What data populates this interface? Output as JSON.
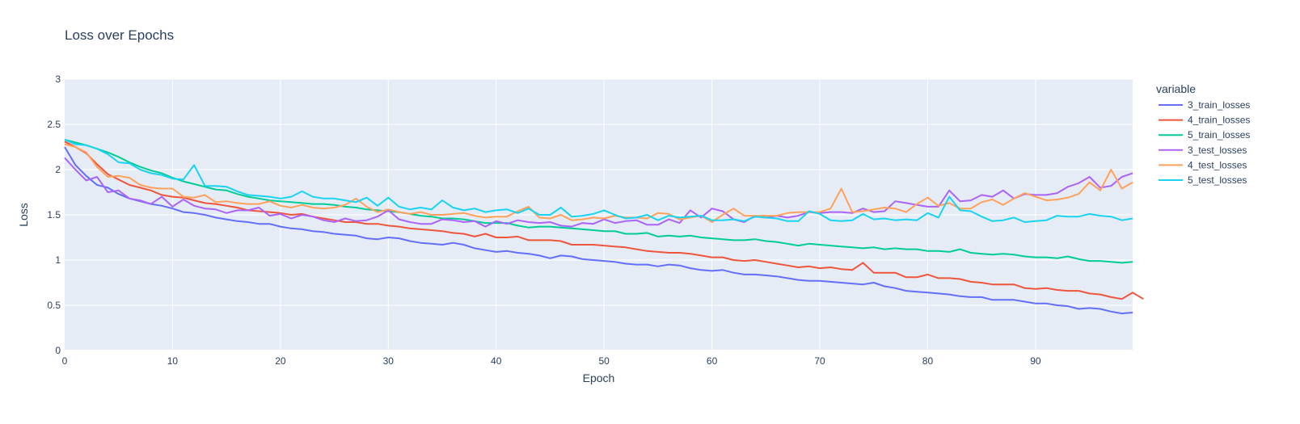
{
  "chart_data": {
    "type": "line",
    "title": "Loss over Epochs",
    "xlabel": "Epoch",
    "ylabel": "Loss",
    "xlim": [
      0,
      99
    ],
    "ylim": [
      0,
      3
    ],
    "xticks": [
      0,
      10,
      20,
      30,
      40,
      50,
      60,
      70,
      80,
      90
    ],
    "yticks": [
      0,
      0.5,
      1,
      1.5,
      2,
      2.5,
      3
    ],
    "grid": true,
    "legend": {
      "title": "variable",
      "placement": "right"
    },
    "series": [
      {
        "name": "3_train_losses",
        "color": "#636efa",
        "values": [
          2.25,
          2.05,
          1.93,
          1.83,
          1.8,
          1.73,
          1.68,
          1.65,
          1.62,
          1.6,
          1.57,
          1.53,
          1.52,
          1.5,
          1.47,
          1.45,
          1.43,
          1.42,
          1.4,
          1.4,
          1.37,
          1.35,
          1.34,
          1.32,
          1.31,
          1.29,
          1.28,
          1.27,
          1.24,
          1.23,
          1.25,
          1.24,
          1.21,
          1.19,
          1.18,
          1.17,
          1.19,
          1.17,
          1.13,
          1.11,
          1.09,
          1.1,
          1.08,
          1.07,
          1.05,
          1.02,
          1.05,
          1.04,
          1.01,
          1.0,
          0.99,
          0.98,
          0.96,
          0.95,
          0.95,
          0.93,
          0.95,
          0.94,
          0.91,
          0.89,
          0.88,
          0.89,
          0.86,
          0.84,
          0.84,
          0.83,
          0.82,
          0.8,
          0.78,
          0.77,
          0.77,
          0.76,
          0.75,
          0.74,
          0.73,
          0.75,
          0.71,
          0.69,
          0.66,
          0.65,
          0.64,
          0.63,
          0.62,
          0.6,
          0.59,
          0.59,
          0.56,
          0.56,
          0.56,
          0.54,
          0.52,
          0.52,
          0.5,
          0.49,
          0.46,
          0.47,
          0.46,
          0.43,
          0.41,
          0.42
        ]
      },
      {
        "name": "4_train_losses",
        "color": "#ef553b",
        "values": [
          2.31,
          2.25,
          2.18,
          2.06,
          1.95,
          1.89,
          1.83,
          1.8,
          1.77,
          1.72,
          1.7,
          1.69,
          1.66,
          1.63,
          1.62,
          1.6,
          1.58,
          1.55,
          1.54,
          1.53,
          1.52,
          1.5,
          1.51,
          1.48,
          1.46,
          1.44,
          1.42,
          1.42,
          1.4,
          1.4,
          1.38,
          1.37,
          1.35,
          1.34,
          1.33,
          1.32,
          1.3,
          1.29,
          1.26,
          1.29,
          1.25,
          1.25,
          1.26,
          1.22,
          1.22,
          1.22,
          1.21,
          1.17,
          1.17,
          1.17,
          1.16,
          1.15,
          1.14,
          1.12,
          1.1,
          1.09,
          1.08,
          1.08,
          1.07,
          1.05,
          1.03,
          1.03,
          1.0,
          0.99,
          1.0,
          0.98,
          0.96,
          0.94,
          0.92,
          0.93,
          0.91,
          0.92,
          0.9,
          0.89,
          0.97,
          0.86,
          0.86,
          0.86,
          0.81,
          0.81,
          0.84,
          0.8,
          0.8,
          0.79,
          0.76,
          0.75,
          0.73,
          0.73,
          0.73,
          0.69,
          0.68,
          0.69,
          0.67,
          0.66,
          0.66,
          0.63,
          0.62,
          0.59,
          0.57,
          0.64,
          0.57
        ]
      },
      {
        "name": "5_train_losses",
        "color": "#00cc96",
        "values": [
          2.33,
          2.3,
          2.27,
          2.23,
          2.19,
          2.14,
          2.08,
          2.03,
          1.99,
          1.96,
          1.91,
          1.87,
          1.84,
          1.81,
          1.78,
          1.77,
          1.73,
          1.7,
          1.68,
          1.66,
          1.65,
          1.64,
          1.63,
          1.62,
          1.62,
          1.61,
          1.59,
          1.58,
          1.56,
          1.55,
          1.54,
          1.53,
          1.51,
          1.49,
          1.48,
          1.46,
          1.46,
          1.45,
          1.43,
          1.41,
          1.41,
          1.41,
          1.38,
          1.36,
          1.37,
          1.37,
          1.36,
          1.35,
          1.34,
          1.33,
          1.32,
          1.32,
          1.29,
          1.29,
          1.3,
          1.26,
          1.27,
          1.26,
          1.27,
          1.25,
          1.24,
          1.23,
          1.22,
          1.22,
          1.23,
          1.21,
          1.2,
          1.18,
          1.16,
          1.18,
          1.17,
          1.16,
          1.15,
          1.14,
          1.13,
          1.14,
          1.12,
          1.13,
          1.12,
          1.12,
          1.1,
          1.1,
          1.09,
          1.12,
          1.08,
          1.07,
          1.06,
          1.07,
          1.06,
          1.04,
          1.03,
          1.03,
          1.02,
          1.04,
          1.01,
          0.99,
          0.99,
          0.98,
          0.97,
          0.98
        ]
      },
      {
        "name": "3_test_losses",
        "color": "#ab63fa",
        "values": [
          2.13,
          2.0,
          1.88,
          1.92,
          1.75,
          1.77,
          1.68,
          1.66,
          1.62,
          1.7,
          1.59,
          1.67,
          1.6,
          1.57,
          1.56,
          1.52,
          1.55,
          1.55,
          1.58,
          1.49,
          1.51,
          1.46,
          1.5,
          1.48,
          1.44,
          1.42,
          1.46,
          1.43,
          1.44,
          1.48,
          1.55,
          1.45,
          1.42,
          1.4,
          1.4,
          1.45,
          1.44,
          1.42,
          1.43,
          1.37,
          1.43,
          1.4,
          1.44,
          1.42,
          1.41,
          1.42,
          1.38,
          1.37,
          1.41,
          1.4,
          1.45,
          1.41,
          1.43,
          1.44,
          1.39,
          1.39,
          1.45,
          1.41,
          1.55,
          1.47,
          1.57,
          1.54,
          1.45,
          1.42,
          1.49,
          1.47,
          1.49,
          1.47,
          1.49,
          1.53,
          1.52,
          1.53,
          1.53,
          1.52,
          1.57,
          1.53,
          1.54,
          1.65,
          1.63,
          1.61,
          1.59,
          1.59,
          1.77,
          1.65,
          1.66,
          1.72,
          1.7,
          1.77,
          1.68,
          1.73,
          1.72,
          1.72,
          1.74,
          1.81,
          1.85,
          1.92,
          1.8,
          1.82,
          1.92,
          1.96
        ]
      },
      {
        "name": "4_test_losses",
        "color": "#ffa15a",
        "values": [
          2.28,
          2.25,
          2.19,
          2.03,
          1.92,
          1.93,
          1.91,
          1.83,
          1.8,
          1.79,
          1.79,
          1.7,
          1.69,
          1.72,
          1.64,
          1.65,
          1.63,
          1.62,
          1.62,
          1.65,
          1.6,
          1.58,
          1.61,
          1.58,
          1.57,
          1.58,
          1.61,
          1.68,
          1.59,
          1.53,
          1.56,
          1.53,
          1.51,
          1.53,
          1.5,
          1.5,
          1.51,
          1.52,
          1.49,
          1.47,
          1.48,
          1.48,
          1.54,
          1.59,
          1.47,
          1.46,
          1.5,
          1.44,
          1.45,
          1.47,
          1.46,
          1.49,
          1.47,
          1.47,
          1.46,
          1.52,
          1.51,
          1.45,
          1.47,
          1.49,
          1.42,
          1.5,
          1.57,
          1.49,
          1.49,
          1.49,
          1.49,
          1.52,
          1.53,
          1.53,
          1.53,
          1.57,
          1.79,
          1.53,
          1.54,
          1.56,
          1.58,
          1.57,
          1.53,
          1.62,
          1.69,
          1.6,
          1.63,
          1.57,
          1.57,
          1.64,
          1.67,
          1.61,
          1.68,
          1.74,
          1.7,
          1.66,
          1.67,
          1.69,
          1.73,
          1.86,
          1.77,
          2.0,
          1.79,
          1.86
        ]
      },
      {
        "name": "5_test_losses",
        "color": "#19d3f3",
        "values": [
          2.33,
          2.28,
          2.27,
          2.23,
          2.17,
          2.08,
          2.07,
          2.0,
          1.96,
          1.94,
          1.9,
          1.89,
          2.05,
          1.82,
          1.82,
          1.81,
          1.76,
          1.72,
          1.71,
          1.7,
          1.68,
          1.7,
          1.76,
          1.7,
          1.68,
          1.68,
          1.66,
          1.64,
          1.69,
          1.6,
          1.69,
          1.59,
          1.56,
          1.58,
          1.56,
          1.66,
          1.58,
          1.55,
          1.57,
          1.53,
          1.55,
          1.56,
          1.52,
          1.57,
          1.5,
          1.5,
          1.58,
          1.48,
          1.49,
          1.51,
          1.55,
          1.5,
          1.46,
          1.47,
          1.5,
          1.44,
          1.49,
          1.47,
          1.48,
          1.49,
          1.44,
          1.44,
          1.45,
          1.43,
          1.48,
          1.47,
          1.46,
          1.43,
          1.43,
          1.54,
          1.51,
          1.44,
          1.43,
          1.44,
          1.51,
          1.45,
          1.46,
          1.44,
          1.45,
          1.44,
          1.52,
          1.47,
          1.7,
          1.55,
          1.54,
          1.48,
          1.43,
          1.44,
          1.47,
          1.42,
          1.43,
          1.44,
          1.49,
          1.48,
          1.48,
          1.51,
          1.49,
          1.48,
          1.44,
          1.46
        ]
      }
    ]
  }
}
